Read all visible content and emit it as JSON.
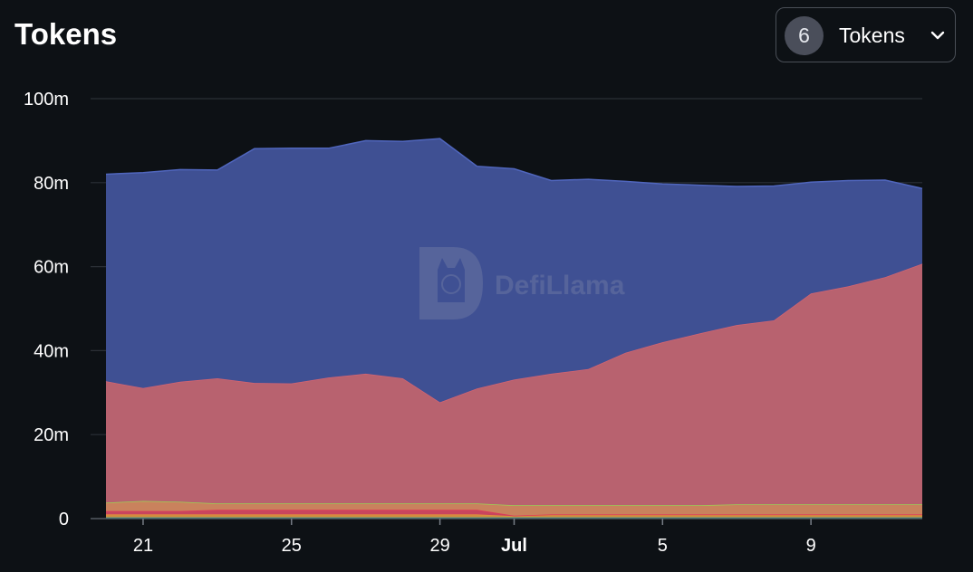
{
  "header": {
    "title": "Tokens",
    "token_count": "6",
    "selector_label": "Tokens"
  },
  "watermark": "DefiLlama",
  "chart_data": {
    "type": "area",
    "stacked": true,
    "title": "Tokens",
    "ylim": [
      0,
      100000000
    ],
    "yticks": [
      {
        "value": 0,
        "label": "0"
      },
      {
        "value": 20000000,
        "label": "20m"
      },
      {
        "value": 40000000,
        "label": "40m"
      },
      {
        "value": 60000000,
        "label": "60m"
      },
      {
        "value": 80000000,
        "label": "80m"
      },
      {
        "value": 100000000,
        "label": "100m"
      }
    ],
    "x": [
      "2023-06-20",
      "2023-06-21",
      "2023-06-22",
      "2023-06-23",
      "2023-06-24",
      "2023-06-25",
      "2023-06-26",
      "2023-06-27",
      "2023-06-28",
      "2023-06-29",
      "2023-06-30",
      "2023-07-01",
      "2023-07-02",
      "2023-07-03",
      "2023-07-04",
      "2023-07-05",
      "2023-07-06",
      "2023-07-07",
      "2023-07-08",
      "2023-07-09",
      "2023-07-10",
      "2023-07-11",
      "2023-07-12"
    ],
    "xticks": [
      {
        "index": 1,
        "label": "21",
        "bold": false
      },
      {
        "index": 5,
        "label": "25",
        "bold": false
      },
      {
        "index": 9,
        "label": "29",
        "bold": false
      },
      {
        "index": 11,
        "label": "Jul",
        "bold": true
      },
      {
        "index": 15,
        "label": "5",
        "bold": false
      },
      {
        "index": 19,
        "label": "9",
        "bold": false
      }
    ],
    "grid": true,
    "series": [
      {
        "color": "#22a8a0",
        "fill": "#2f9e99",
        "values": [
          300000,
          300000,
          300000,
          300000,
          300000,
          300000,
          300000,
          300000,
          300000,
          300000,
          300000,
          300000,
          300000,
          300000,
          300000,
          300000,
          300000,
          300000,
          300000,
          300000,
          300000,
          300000,
          300000
        ]
      },
      {
        "color": "#e0963a",
        "fill": "#d38b3d",
        "values": [
          700000,
          700000,
          700000,
          700000,
          700000,
          700000,
          700000,
          700000,
          700000,
          700000,
          700000,
          300000,
          700000,
          700000,
          700000,
          700000,
          700000,
          700000,
          700000,
          700000,
          700000,
          700000,
          700000
        ]
      },
      {
        "color": "#e0375a",
        "fill": "#c8455e",
        "values": [
          800000,
          800000,
          800000,
          1100000,
          1100000,
          1100000,
          1100000,
          1100000,
          1100000,
          1100000,
          1100000,
          100000,
          0,
          0,
          0,
          0,
          0,
          0,
          0,
          0,
          0,
          0,
          0
        ]
      },
      {
        "color": "#9bd154",
        "fill": "#c9825d",
        "values": [
          2000000,
          2400000,
          2200000,
          1500000,
          1500000,
          1500000,
          1500000,
          1500000,
          1500000,
          1500000,
          1500000,
          2500000,
          2200000,
          2200000,
          2200000,
          2200000,
          2200000,
          2400000,
          2400000,
          2400000,
          2400000,
          2400000,
          2400000
        ]
      },
      {
        "color": "#d46472",
        "fill": "#b8626f",
        "values": [
          28900000,
          26900000,
          28600000,
          29800000,
          28700000,
          28600000,
          30000000,
          30900000,
          29800000,
          24100000,
          27400000,
          29900000,
          31300000,
          32400000,
          36300000,
          38800000,
          40900000,
          42700000,
          43800000,
          50200000,
          51900000,
          54100000,
          57300000
        ]
      },
      {
        "color": "#5066bd",
        "fill": "#3f5093",
        "values": [
          49300000,
          51300000,
          50500000,
          49600000,
          55800000,
          56000000,
          54600000,
          55500000,
          56400000,
          62800000,
          52900000,
          50200000,
          46000000,
          45200000,
          40800000,
          37700000,
          35300000,
          33000000,
          32000000,
          26500000,
          25200000,
          23100000,
          17900000
        ]
      }
    ]
  }
}
